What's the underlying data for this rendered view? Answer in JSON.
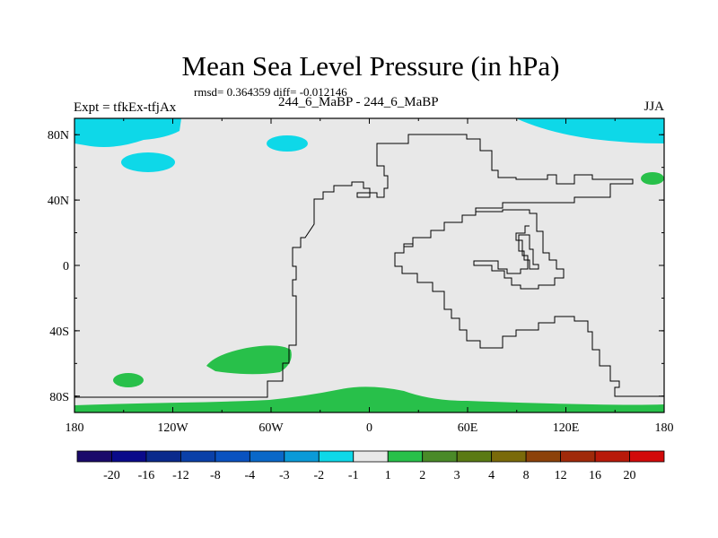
{
  "header": {
    "title": "Mean Sea Level Pressure (in hPa)",
    "stats": "rmsd= 0.364359  diff= -0.012146",
    "left_label": "Expt = tfkEx-tfjAx",
    "center_label": "244_6_MaBP - 244_6_MaBP",
    "right_label": "JJA"
  },
  "chart_data": {
    "type": "heatmap",
    "title": "Mean Sea Level Pressure (in hPa)",
    "x_ticks": [
      "180",
      "120W",
      "60W",
      "0",
      "60E",
      "120E",
      "180"
    ],
    "x_tick_values": [
      -180,
      -120,
      -60,
      0,
      60,
      120,
      180
    ],
    "y_ticks": [
      "80N",
      "40N",
      "0",
      "40S",
      "80S"
    ],
    "y_tick_values": [
      80,
      40,
      0,
      -40,
      -80
    ],
    "xlim": [
      -180,
      180
    ],
    "ylim": [
      -90,
      90
    ],
    "colorbar": {
      "labels": [
        "-20",
        "-16",
        "-12",
        "-8",
        "-4",
        "-3",
        "-2",
        "-1",
        "1",
        "2",
        "3",
        "4",
        "8",
        "12",
        "16",
        "20"
      ],
      "colors": [
        "#1a0a6a",
        "#0a0a8a",
        "#0a2a8c",
        "#0a40a8",
        "#0a52c0",
        "#0a68c8",
        "#0a9ad8",
        "#0ed8e8",
        "#e8e8e8",
        "#28c04a",
        "#4a8a28",
        "#5a7a14",
        "#7a6a0a",
        "#8c420a",
        "#a02a0a",
        "#b81a0a",
        "#d20a0a"
      ]
    },
    "background_color": "#e8e8e8",
    "regions": [
      {
        "value_range": "-2 to -1",
        "color": "#0ed8e8",
        "area": "Arctic, north of 80N, 180-120W"
      },
      {
        "value_range": "-2 to -1",
        "color": "#0ed8e8",
        "area": "around 65N, 140W"
      },
      {
        "value_range": "-2 to -1",
        "color": "#0ed8e8",
        "area": "around 73N, 45W"
      },
      {
        "value_range": "-2 to -1",
        "color": "#0ed8e8",
        "area": "Arctic, north of 80N, 90E-180"
      },
      {
        "value_range": "1 to 2",
        "color": "#28c04a",
        "area": "around 52N, 170E"
      },
      {
        "value_range": "1 to 2",
        "color": "#28c04a",
        "area": "around 60S, 80W-50W"
      },
      {
        "value_range": "1 to 2",
        "color": "#28c04a",
        "area": "around 70S, 145W"
      },
      {
        "value_range": "1 to 2",
        "color": "#28c04a",
        "area": "Antarctic margin, south of 80S"
      }
    ]
  }
}
